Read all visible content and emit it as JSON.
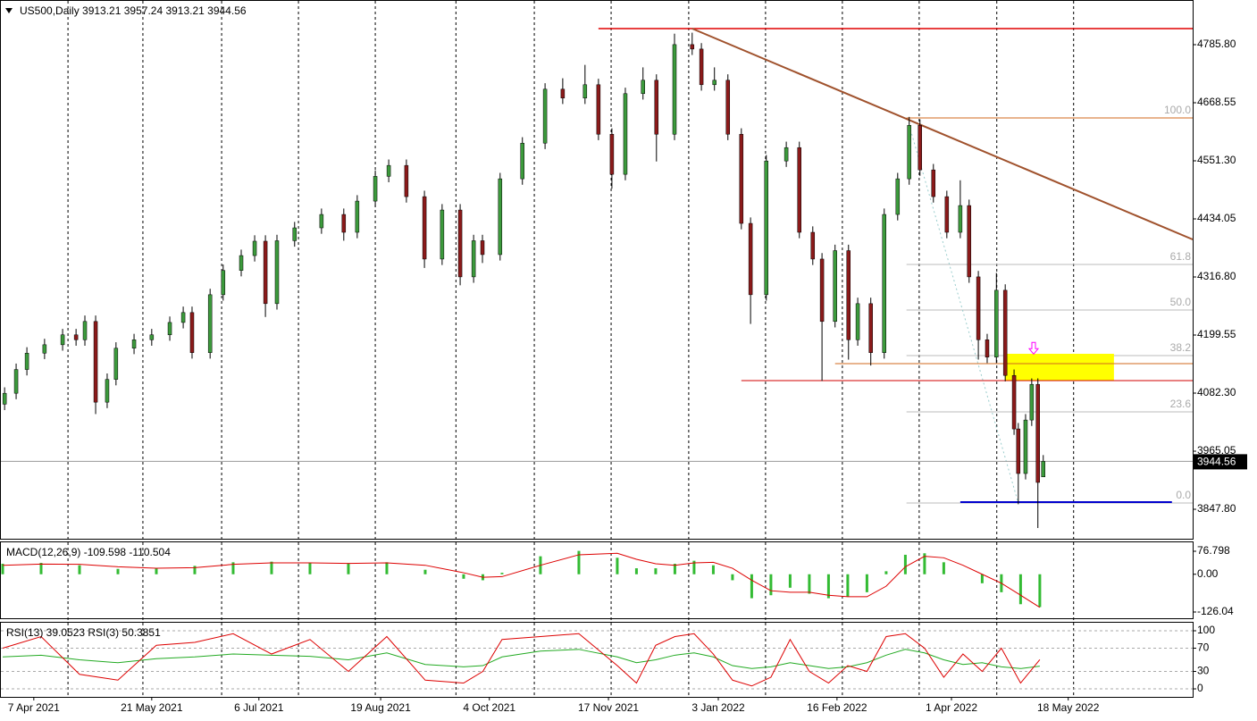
{
  "chart_data": [
    {
      "type": "candlestick",
      "title": "US500,Daily  3913.21 3957.24 3913.21 3944.56",
      "xlim": [
        -0.7,
        309.8
      ],
      "ylim": [
        3786.5,
        4876.0
      ],
      "yticks": [
        {
          "value": 4785.8,
          "label": "4785.80"
        },
        {
          "value": 4668.55,
          "label": "4668.55"
        },
        {
          "value": 4551.3,
          "label": "4551.30"
        },
        {
          "value": 4434.05,
          "label": "4434.05"
        },
        {
          "value": 4316.8,
          "label": "4316.80"
        },
        {
          "value": 4199.55,
          "label": "4199.55"
        },
        {
          "value": 4082.3,
          "label": "4082.30"
        },
        {
          "value": 3965.05,
          "label": "3965.05"
        },
        {
          "value": 3847.8,
          "label": "3847.80"
        }
      ],
      "xgrid": [
        17,
        36.5,
        57,
        77,
        97,
        118,
        138.4,
        158.4,
        178.6,
        198.6,
        218.6,
        238.6,
        258.8,
        278.8
      ],
      "up_color": "#3c9a3c",
      "down_color": "#8b1a1a",
      "x": [
        0.5,
        3.5,
        6.3,
        10.9,
        15.6,
        19.1,
        21.4,
        24.2,
        27.2,
        29.5,
        34.2,
        38.8,
        43.5,
        47,
        49.3,
        54,
        57.4,
        62.1,
        65.6,
        68.4,
        71.4,
        76,
        83,
        88.8,
        92.3,
        97,
        100.5,
        105.1,
        109.8,
        114.4,
        119.1,
        122.6,
        124.9,
        129.5,
        135.3,
        141.2,
        145.8,
        151.6,
        155.1,
        158.6,
        162.1,
        166.7,
        170.2,
        174.9,
        179.5,
        181.9,
        185.3,
        188.8,
        192.3,
        194.7,
        198.8,
        204,
        207.4,
        210.9,
        213.3,
        216.7,
        220.2,
        222.6,
        226,
        229.5,
        233,
        236,
        238.8,
        242.3,
        245.8,
        249.3,
        251.6,
        254,
        256.3,
        258.7,
        261,
        263.3,
        264.4,
        266.3,
        267.9,
        269.5,
        270.9
      ],
      "open": [
        4060,
        4082,
        4130,
        4163,
        4180,
        4200,
        4190,
        4227,
        4064,
        4110,
        4173,
        4190,
        4200,
        4225,
        4245,
        4164,
        4281,
        4330,
        4360,
        4389,
        4263,
        4390,
        4416,
        4443,
        4407,
        4470,
        4520,
        4542,
        4479,
        4353,
        4452,
        4317,
        4390,
        4362,
        4515,
        4587,
        4696,
        4678,
        4705,
        4605,
        4524,
        4687,
        4714,
        4605,
        4786,
        4777,
        4705,
        4714,
        4605,
        4425,
        4281,
        4551,
        4578,
        4407,
        4353,
        4227,
        4370,
        4190,
        4263,
        4164,
        4443,
        4515,
        4623,
        4533,
        4479,
        4407,
        4461,
        4317,
        4190,
        4155,
        4290,
        4118,
        4010,
        3920,
        4028,
        4100,
        3913.21
      ],
      "high": [
        4094,
        4142,
        4175,
        4192,
        4212,
        4212,
        4239,
        4239,
        4122,
        4185,
        4202,
        4212,
        4237,
        4257,
        4257,
        4293,
        4342,
        4372,
        4401,
        4401,
        4402,
        4428,
        4455,
        4455,
        4482,
        4532,
        4554,
        4554,
        4491,
        4464,
        4464,
        4402,
        4402,
        4527,
        4599,
        4708,
        4718,
        4745,
        4717,
        4617,
        4699,
        4740,
        4726,
        4808,
        4810,
        4789,
        4740,
        4726,
        4617,
        4437,
        4563,
        4590,
        4590,
        4419,
        4365,
        4382,
        4382,
        4275,
        4275,
        4455,
        4527,
        4640,
        4635,
        4545,
        4491,
        4512,
        4473,
        4329,
        4202,
        4325,
        4302,
        4130,
        4022,
        4040,
        4112,
        4112,
        3957.24
      ],
      "low": [
        4048,
        4070,
        4118,
        4151,
        4168,
        4178,
        4178,
        4040,
        4052,
        4098,
        4161,
        4178,
        4188,
        4213,
        4152,
        4152,
        4269,
        4318,
        4348,
        4236,
        4251,
        4378,
        4404,
        4390,
        4395,
        4458,
        4508,
        4467,
        4335,
        4341,
        4300,
        4305,
        4345,
        4350,
        4503,
        4575,
        4666,
        4666,
        4593,
        4495,
        4512,
        4675,
        4550,
        4593,
        4765,
        4693,
        4693,
        4593,
        4413,
        4222,
        4269,
        4539,
        4395,
        4341,
        4107,
        4215,
        4150,
        4178,
        4138,
        4152,
        4431,
        4503,
        4521,
        4467,
        4395,
        4395,
        4305,
        4150,
        4143,
        4143,
        4106,
        3998,
        3858,
        3908,
        4016,
        3810,
        3913.21
      ],
      "close": [
        4082,
        4130,
        4163,
        4180,
        4200,
        4190,
        4227,
        4064,
        4110,
        4173,
        4190,
        4200,
        4225,
        4245,
        4164,
        4281,
        4330,
        4360,
        4389,
        4263,
        4390,
        4416,
        4443,
        4407,
        4470,
        4520,
        4542,
        4479,
        4353,
        4452,
        4317,
        4390,
        4362,
        4515,
        4587,
        4696,
        4678,
        4705,
        4605,
        4524,
        4687,
        4714,
        4605,
        4786,
        4777,
        4705,
        4714,
        4605,
        4425,
        4281,
        4551,
        4578,
        4407,
        4353,
        4227,
        4370,
        4190,
        4263,
        4164,
        4443,
        4515,
        4623,
        4533,
        4479,
        4407,
        4461,
        4317,
        4190,
        4155,
        4290,
        4118,
        4010,
        3920,
        4028,
        4100,
        3902,
        3944.56
      ],
      "last_price": 3944.56,
      "lines": [
        {
          "x": [
            155.1,
            309.8
          ],
          "y": [
            4818.3,
            4818.3
          ],
          "color": "#e00000",
          "width": 1.5,
          "dash": false
        },
        {
          "x": [
            179.5,
            309.8
          ],
          "y": [
            4818.3,
            4392.6
          ],
          "color": "#a0522d",
          "width": 2,
          "dash": false
        },
        {
          "x": [
            192.3,
            309.8
          ],
          "y": [
            4107.6,
            4107.6
          ],
          "color": "#d00000",
          "width": 1,
          "dash": false
        },
        {
          "x": [
            216.7,
            309.8
          ],
          "y": [
            4141.8,
            4141.8
          ],
          "color": "#d2691e",
          "width": 1,
          "dash": false
        },
        {
          "x": [
            249.3,
            304.4
          ],
          "y": [
            3862.3,
            3862.3
          ],
          "color": "#0000cd",
          "width": 2,
          "dash": false
        },
        {
          "x": [
            236,
            264.4
          ],
          "y": [
            4623,
            3860.4
          ],
          "color": "#9cc",
          "width": 1,
          "dash": true
        }
      ],
      "fib": {
        "x": [
          235.3,
          309.8
        ],
        "levels": [
          {
            "label": "100.0",
            "price": 4637.9,
            "color": "#d2691e"
          },
          {
            "label": "61.8",
            "price": 4342.1,
            "color": "#bbb"
          },
          {
            "label": "50.0",
            "price": 4250.1,
            "color": "#bbb"
          },
          {
            "label": "38.2",
            "price": 4158.1,
            "color": "#bbb"
          },
          {
            "label": "23.6",
            "price": 4044.4,
            "color": "#bbb"
          },
          {
            "label": "0.0",
            "price": 3860.4,
            "color": "#bbb"
          }
        ]
      },
      "zone": {
        "x": [
          260.9,
          289.3
        ],
        "y": [
          4161.7,
          4107.6
        ],
        "color": "#ffff00"
      },
      "arrow": {
        "x": 268.4,
        "y": 4172,
        "color": "#ff00ff"
      }
    },
    {
      "type": "macd",
      "title": "MACD(12,26,9) -109.598 -110.504",
      "xlim": [
        -0.7,
        309.8
      ],
      "ylim": [
        -146.9,
        109.6
      ],
      "yticks": [
        76.798,
        {
          "value": 0,
          "label": "0.00"
        },
        -126.04
      ],
      "x": [
        0,
        10,
        20,
        30,
        40,
        50,
        60,
        70,
        80,
        90,
        100,
        110,
        120,
        125,
        130,
        140,
        150,
        160,
        165,
        170,
        175,
        180,
        185,
        190,
        195,
        200,
        205,
        210,
        215,
        220,
        225,
        230,
        235,
        240,
        245,
        250,
        255,
        260,
        265,
        270
      ],
      "hist": [
        35,
        38,
        30,
        18,
        20,
        28,
        40,
        42,
        38,
        35,
        40,
        15,
        -15,
        -20,
        5,
        60,
        78,
        55,
        20,
        20,
        35,
        45,
        30,
        -20,
        -80,
        -70,
        -45,
        -65,
        -80,
        -75,
        -60,
        10,
        65,
        70,
        40,
        0,
        -30,
        -60,
        -100,
        -109.598
      ],
      "signal": [
        30,
        34,
        33,
        25,
        20,
        22,
        33,
        38,
        38,
        36,
        38,
        30,
        5,
        -10,
        -8,
        30,
        65,
        70,
        50,
        35,
        30,
        38,
        40,
        20,
        -20,
        -55,
        -60,
        -60,
        -70,
        -75,
        -75,
        -40,
        25,
        60,
        55,
        30,
        0,
        -30,
        -70,
        -110.504
      ],
      "hist_color": "#33bb33",
      "signal_color": "#dd0000"
    },
    {
      "type": "line",
      "title": "RSI(13) 39.0523  RSI(3) 50.3851",
      "xlim": [
        -0.7,
        309.8
      ],
      "ylim": [
        -13.8,
        115.4
      ],
      "yticks": [
        100,
        70,
        30,
        0
      ],
      "x": [
        0,
        10,
        20,
        30,
        40,
        50,
        60,
        70,
        80,
        90,
        100,
        110,
        120,
        125,
        130,
        140,
        150,
        160,
        165,
        170,
        175,
        180,
        185,
        190,
        195,
        200,
        205,
        210,
        215,
        220,
        225,
        230,
        235,
        240,
        245,
        250,
        255,
        260,
        265,
        270
      ],
      "series": [
        {
          "color": "#22aa22",
          "values": [
            55,
            58,
            50,
            45,
            52,
            55,
            60,
            58,
            56,
            50,
            62,
            42,
            38,
            40,
            55,
            65,
            68,
            55,
            45,
            50,
            58,
            62,
            55,
            40,
            35,
            38,
            45,
            40,
            35,
            38,
            45,
            58,
            68,
            62,
            50,
            42,
            45,
            38,
            35,
            39.0523
          ]
        },
        {
          "color": "#dd0000",
          "values": [
            70,
            90,
            25,
            15,
            75,
            80,
            95,
            60,
            85,
            30,
            90,
            15,
            10,
            30,
            85,
            90,
            95,
            40,
            10,
            75,
            90,
            95,
            60,
            15,
            5,
            20,
            85,
            30,
            10,
            40,
            30,
            90,
            95,
            70,
            20,
            60,
            30,
            70,
            10,
            50.3851
          ]
        }
      ],
      "xticks": [
        {
          "value": 8.1,
          "label": "7 Apr 2021"
        },
        {
          "value": 38.8,
          "label": "21 May 2021"
        },
        {
          "value": 66.7,
          "label": "6 Jul 2021"
        },
        {
          "value": 98.4,
          "label": "19 Aug 2021"
        },
        {
          "value": 126.7,
          "label": "4 Oct 2021"
        },
        {
          "value": 157.7,
          "label": "17 Nov 2021"
        },
        {
          "value": 186.3,
          "label": "3 Jan 2022"
        },
        {
          "value": 217.2,
          "label": "16 Feb 2022"
        },
        {
          "value": 247,
          "label": "1 Apr 2022"
        },
        {
          "value": 277.4,
          "label": "18 May 2022"
        }
      ]
    }
  ]
}
